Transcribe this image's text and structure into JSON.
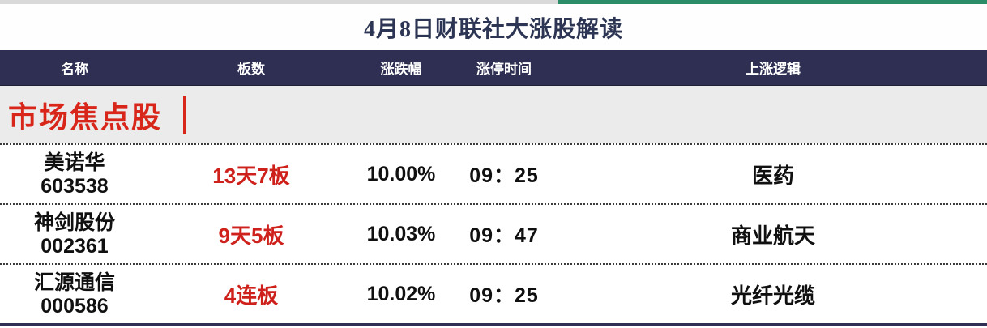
{
  "page": {
    "title": "4月8日财联社大涨股解读",
    "accent_green": "#2b8c68",
    "strip_gray": "#d9d9d9",
    "header_bg": "#2e2f52",
    "section_bg": "#ebebeb",
    "red": "#d8261a"
  },
  "table": {
    "columns": [
      "名称",
      "板数",
      "涨跌幅",
      "涨停时间",
      "上涨逻辑"
    ],
    "section_label": "市场焦点股",
    "rows": [
      {
        "name": "美诺华",
        "code": "603538",
        "boards": "13天7板",
        "change": "10.00%",
        "limit_time": "09：25",
        "logic": "医药"
      },
      {
        "name": "神剑股份",
        "code": "002361",
        "boards": "9天5板",
        "change": "10.03%",
        "limit_time": "09：47",
        "logic": "商业航天"
      },
      {
        "name": "汇源通信",
        "code": "000586",
        "boards": "4连板",
        "change": "10.02%",
        "limit_time": "09：25",
        "logic": "光纤光缆"
      }
    ]
  },
  "chart_data": {
    "type": "table",
    "title": "4月8日财联社大涨股解读",
    "section": "市场焦点股",
    "columns": [
      "名称",
      "板数",
      "涨跌幅",
      "涨停时间",
      "上涨逻辑"
    ],
    "rows": [
      [
        "美诺华 603538",
        "13天7板",
        "10.00%",
        "09：25",
        "医药"
      ],
      [
        "神剑股份 002361",
        "9天5板",
        "10.03%",
        "09：47",
        "商业航天"
      ],
      [
        "汇源通信 000586",
        "4连板",
        "10.02%",
        "09：25",
        "光纤光缆"
      ]
    ]
  }
}
